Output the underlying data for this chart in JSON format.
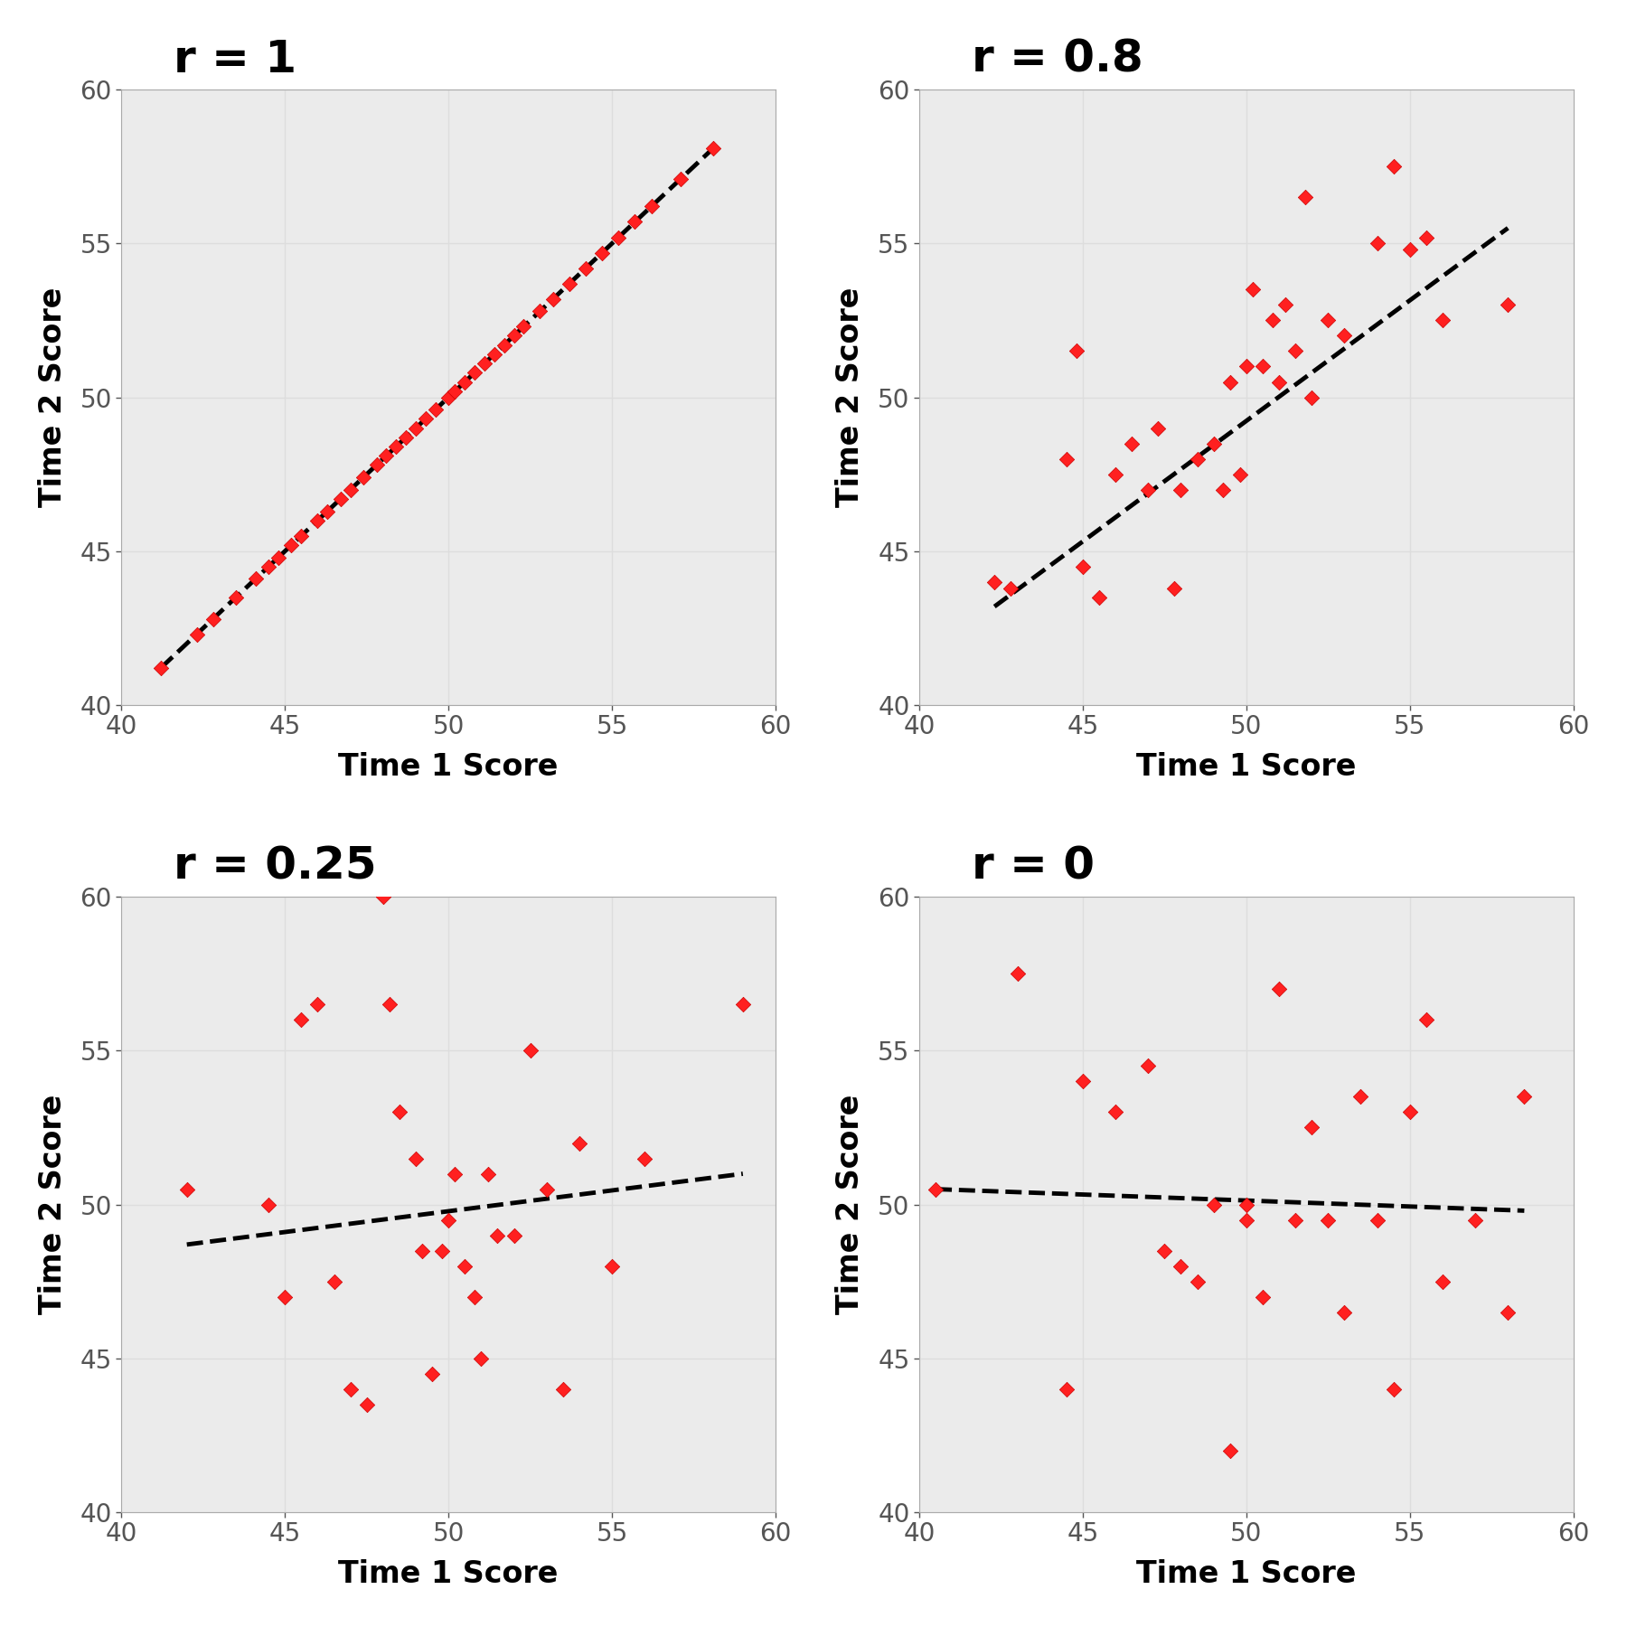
{
  "panels": [
    {
      "title": "r = 1",
      "x": [
        41.2,
        42.3,
        42.8,
        43.5,
        44.1,
        44.5,
        44.8,
        45.2,
        45.5,
        46.0,
        46.3,
        46.7,
        47.0,
        47.4,
        47.8,
        48.1,
        48.4,
        48.7,
        49.0,
        49.3,
        49.6,
        50.0,
        50.2,
        50.5,
        50.8,
        51.1,
        51.4,
        51.7,
        52.0,
        52.3,
        52.8,
        53.2,
        53.7,
        54.2,
        54.7,
        55.2,
        55.7,
        56.2,
        57.1,
        58.1
      ],
      "y": [
        41.2,
        42.3,
        42.8,
        43.5,
        44.1,
        44.5,
        44.8,
        45.2,
        45.5,
        46.0,
        46.3,
        46.7,
        47.0,
        47.4,
        47.8,
        48.1,
        48.4,
        48.7,
        49.0,
        49.3,
        49.6,
        50.0,
        50.2,
        50.5,
        50.8,
        51.1,
        51.4,
        51.7,
        52.0,
        52.3,
        52.8,
        53.2,
        53.7,
        54.2,
        54.7,
        55.2,
        55.7,
        56.2,
        57.1,
        58.1
      ],
      "line_x": [
        41.2,
        58.1
      ],
      "line_y": [
        41.2,
        58.1
      ]
    },
    {
      "title": "r = 0.8",
      "x": [
        42.3,
        42.8,
        44.5,
        44.8,
        45.0,
        45.5,
        46.0,
        46.5,
        47.0,
        47.3,
        47.8,
        48.0,
        48.5,
        49.0,
        49.3,
        49.5,
        49.8,
        50.0,
        50.2,
        50.5,
        50.8,
        51.0,
        51.2,
        51.5,
        51.8,
        52.0,
        52.5,
        53.0,
        54.0,
        54.5,
        55.0,
        55.5,
        56.0,
        58.0
      ],
      "y": [
        44.0,
        43.8,
        48.0,
        51.5,
        44.5,
        43.5,
        47.5,
        48.5,
        47.0,
        49.0,
        43.8,
        47.0,
        48.0,
        48.5,
        47.0,
        50.5,
        47.5,
        51.0,
        53.5,
        51.0,
        52.5,
        50.5,
        53.0,
        51.5,
        56.5,
        50.0,
        52.5,
        52.0,
        55.0,
        57.5,
        54.8,
        55.2,
        52.5,
        53.0
      ],
      "line_x": [
        42.3,
        58.0
      ],
      "line_y": [
        43.2,
        55.5
      ]
    },
    {
      "title": "r = 0.25",
      "x": [
        42.0,
        44.5,
        45.0,
        45.5,
        46.0,
        46.5,
        47.0,
        47.5,
        48.0,
        48.2,
        48.5,
        49.0,
        49.2,
        49.5,
        49.8,
        50.0,
        50.2,
        50.5,
        50.8,
        51.0,
        51.2,
        51.5,
        52.0,
        52.5,
        53.0,
        53.5,
        54.0,
        55.0,
        56.0,
        59.0
      ],
      "y": [
        50.5,
        50.0,
        47.0,
        56.0,
        56.5,
        47.5,
        44.0,
        43.5,
        60.0,
        56.5,
        53.0,
        51.5,
        48.5,
        44.5,
        48.5,
        49.5,
        51.0,
        48.0,
        47.0,
        45.0,
        51.0,
        49.0,
        49.0,
        55.0,
        50.5,
        44.0,
        52.0,
        48.0,
        51.5,
        56.5
      ],
      "line_x": [
        42.0,
        59.0
      ],
      "line_y": [
        48.7,
        51.0
      ]
    },
    {
      "title": "r = 0",
      "x": [
        40.5,
        43.0,
        44.5,
        45.0,
        46.0,
        47.0,
        47.5,
        48.0,
        48.5,
        49.0,
        49.5,
        50.0,
        50.0,
        50.5,
        51.0,
        51.5,
        52.0,
        52.5,
        53.0,
        53.5,
        54.0,
        54.5,
        55.0,
        55.5,
        56.0,
        57.0,
        58.0,
        58.5
      ],
      "y": [
        50.5,
        57.5,
        44.0,
        54.0,
        53.0,
        54.5,
        48.5,
        48.0,
        47.5,
        50.0,
        42.0,
        49.5,
        50.0,
        47.0,
        57.0,
        49.5,
        52.5,
        49.5,
        46.5,
        53.5,
        49.5,
        44.0,
        53.0,
        56.0,
        47.5,
        49.5,
        46.5,
        53.5
      ],
      "line_x": [
        40.5,
        58.5
      ],
      "line_y": [
        50.5,
        49.8
      ]
    }
  ],
  "scatter_color": "#FF2020",
  "scatter_marker": "D",
  "scatter_size": 70,
  "scatter_edgecolor": "#CC0000",
  "scatter_edgewidth": 0.5,
  "line_color": "#000000",
  "line_style": "--",
  "line_width": 3.5,
  "xlabel": "Time 1 Score",
  "ylabel": "Time 2 Score",
  "xlim": [
    40,
    60
  ],
  "ylim": [
    40,
    60
  ],
  "xticks": [
    40,
    45,
    50,
    55,
    60
  ],
  "yticks": [
    40,
    45,
    50,
    55,
    60
  ],
  "title_fontsize": 36,
  "label_fontsize": 24,
  "tick_fontsize": 20,
  "grid_color": "#DDDDDD",
  "panel_bg": "#EBEBEB",
  "figure_bg": "#FFFFFF",
  "spine_color": "#AAAAAA"
}
